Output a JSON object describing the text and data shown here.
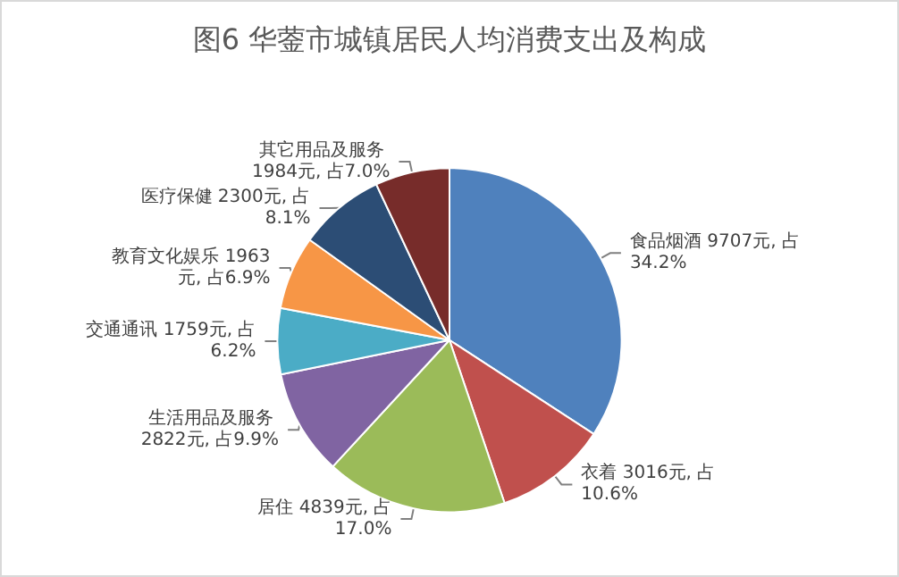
{
  "chart_data": {
    "type": "pie",
    "title": "图6 华蓥市城镇居民人均消费支出及构成",
    "categories": [
      "食品烟酒",
      "衣着",
      "居住",
      "生活用品及服务",
      "交通通讯",
      "教育文化娱乐",
      "医疗保健",
      "其它用品及服务"
    ],
    "values": [
      9707,
      3016,
      4839,
      2822,
      1759,
      1963,
      2300,
      1984
    ],
    "value_labels": [
      "9707元, 占34.2%",
      "3016元, 占10.6%",
      "4839元, 占17.0%",
      "2822元, 占9.9%",
      "1759元, 占6.2%",
      "1963元, 占6.9%",
      "2300元, 占8.1%",
      "1984元, 占7.0%"
    ],
    "colors": [
      "#4f81bd",
      "#c0504d",
      "#9bbb59",
      "#8064a2",
      "#4bacc6",
      "#f79646",
      "#2c4d75",
      "#772c2a"
    ],
    "legend": false
  }
}
